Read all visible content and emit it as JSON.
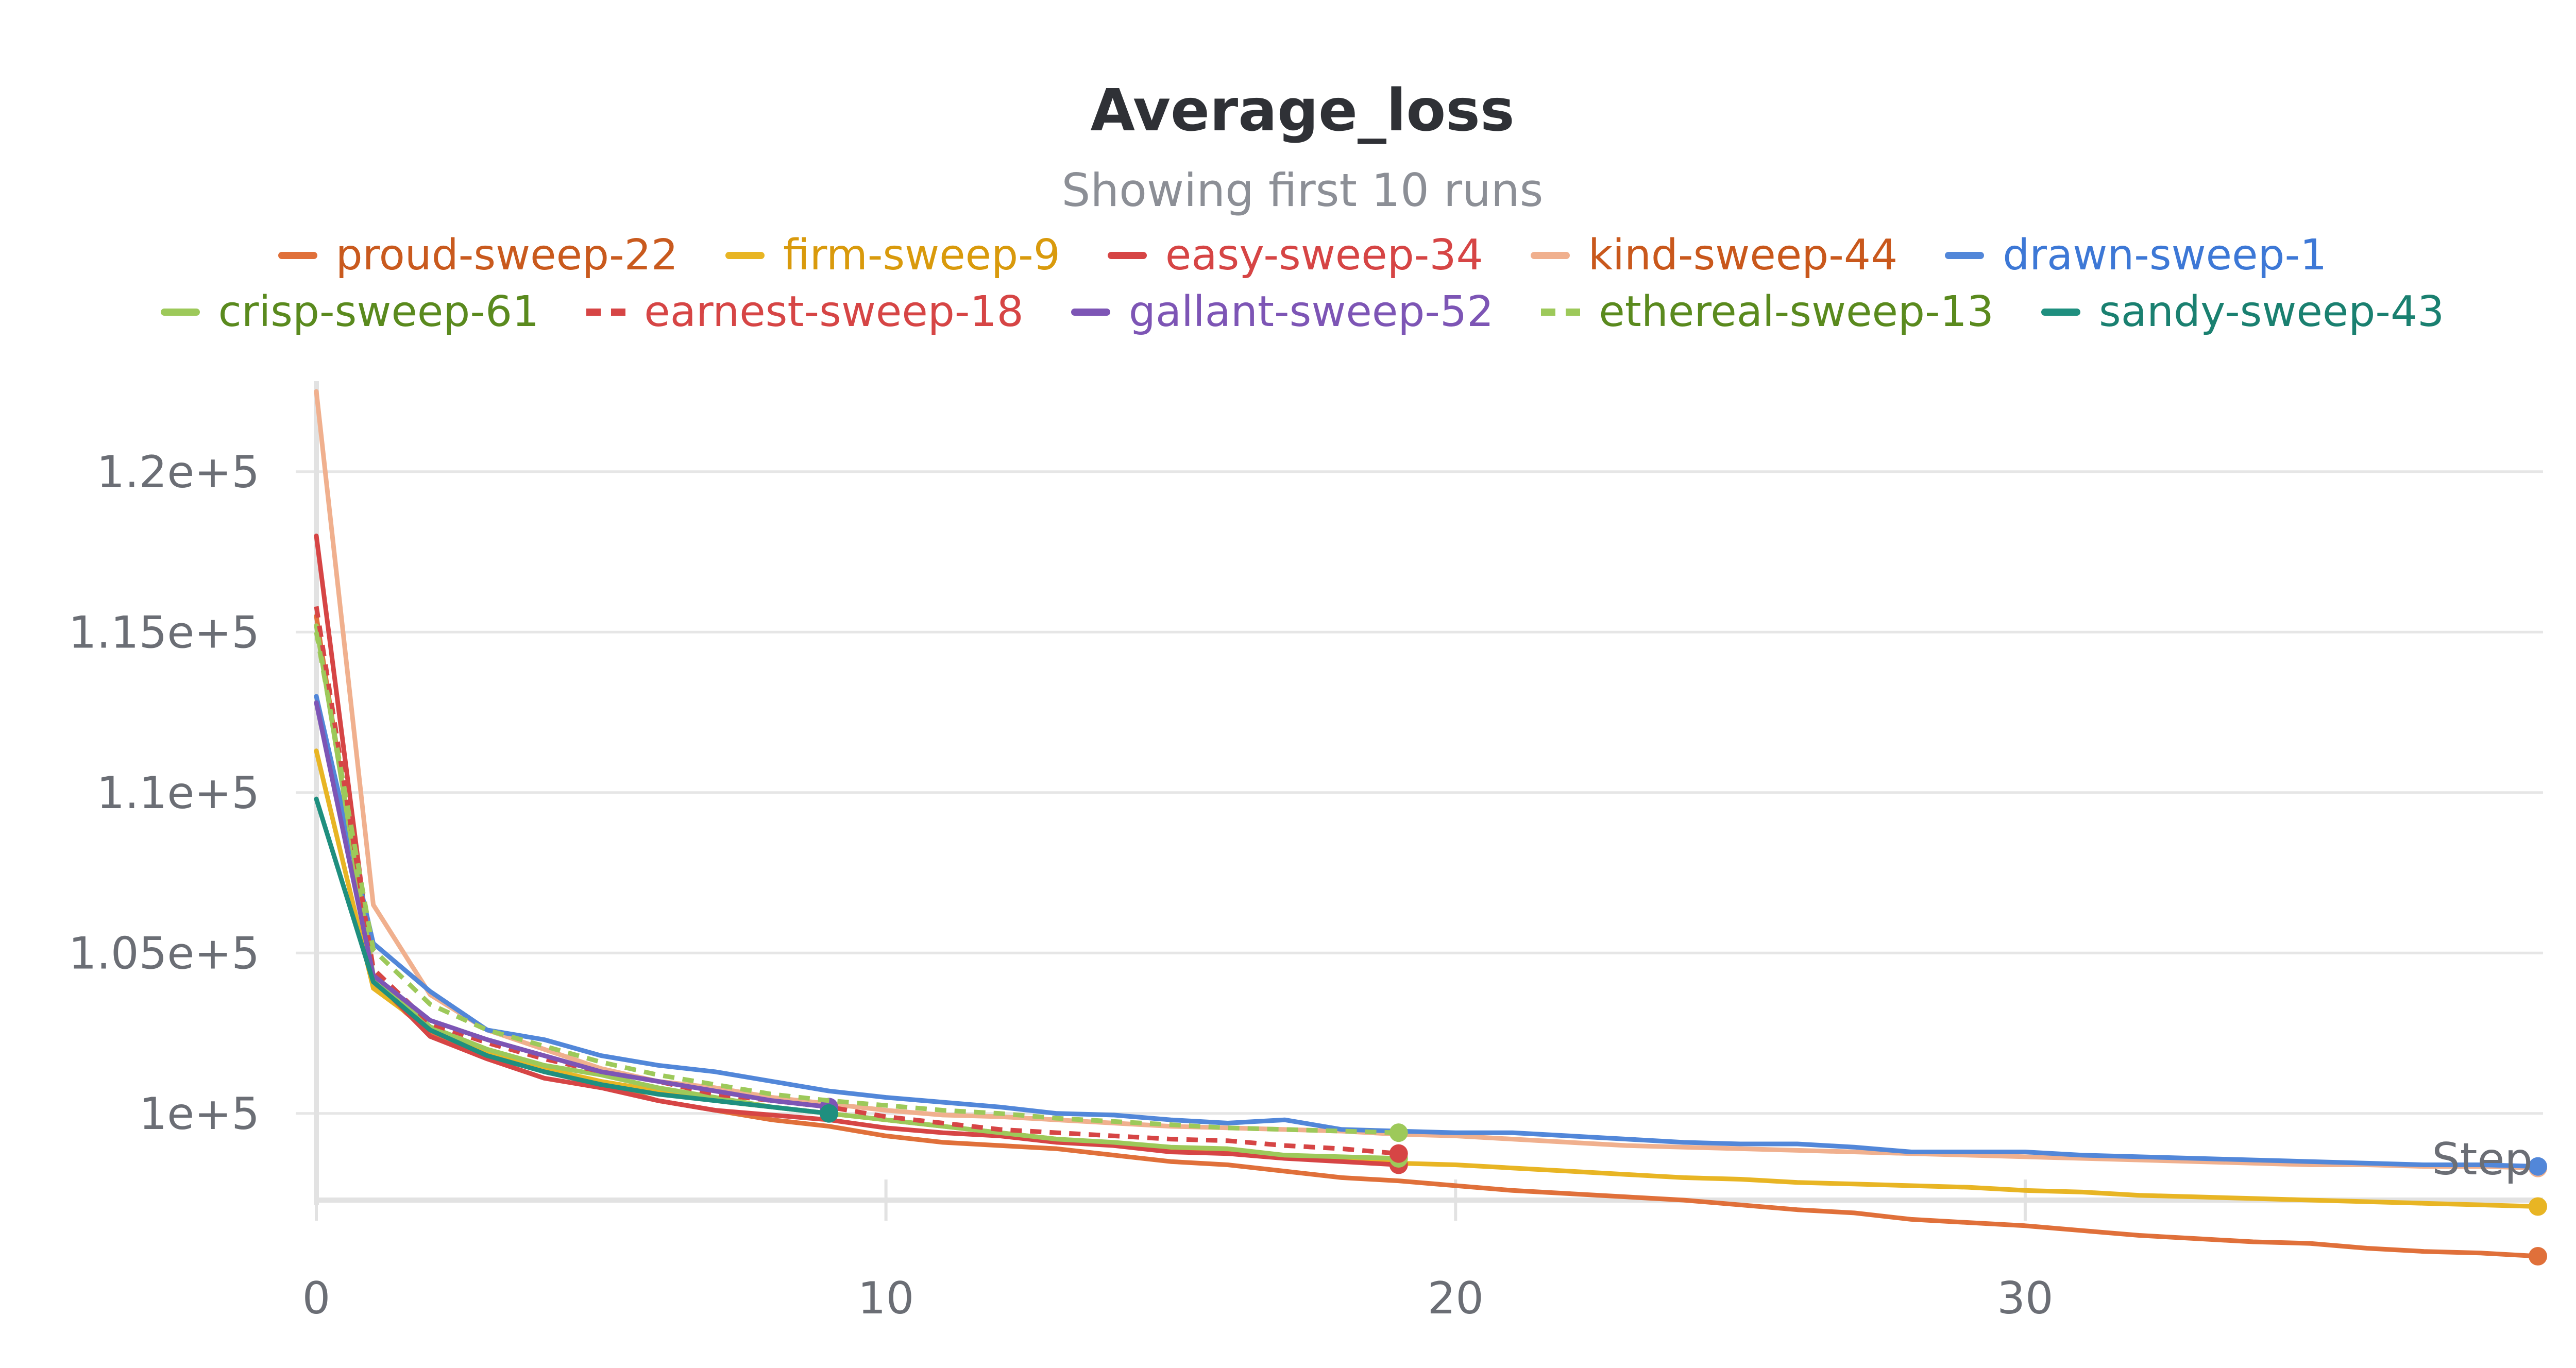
{
  "chart_data": {
    "type": "line",
    "title": "Average_loss",
    "subtitle": "Showing first 10 runs",
    "xlabel": "Step",
    "ylabel": "",
    "xlim": [
      0,
      39
    ],
    "ylim": [
      97300,
      122500
    ],
    "x_ticks": [
      0,
      10,
      20,
      30
    ],
    "x_tick_labels": [
      "0",
      "10",
      "20",
      "30"
    ],
    "y_ticks": [
      100000,
      105000,
      110000,
      115000,
      120000
    ],
    "y_tick_labels": [
      "1e+5",
      "1.05e+5",
      "1.1e+5",
      "1.15e+5",
      "1.2e+5"
    ],
    "grid": true,
    "legend_position": "top",
    "series": [
      {
        "name": "proud-sweep-22",
        "color": "#e0703a",
        "text_color": "#c95a1e",
        "dashed": false,
        "x": [
          0,
          1,
          2,
          3,
          4,
          5,
          6,
          7,
          8,
          9,
          10,
          11,
          12,
          13,
          14,
          15,
          16,
          17,
          18,
          19,
          20,
          21,
          22,
          23,
          24,
          25,
          26,
          27,
          28,
          29,
          30,
          31,
          32,
          33,
          34,
          35,
          36,
          37,
          38,
          39
        ],
        "y": [
          115500,
          104000,
          102500,
          101900,
          101300,
          100900,
          100400,
          100100,
          99800,
          99600,
          99300,
          99100,
          99000,
          98900,
          98700,
          98500,
          98400,
          98200,
          98000,
          97900,
          97750,
          97600,
          97500,
          97400,
          97300,
          97150,
          97000,
          96900,
          96700,
          96600,
          96500,
          96350,
          96200,
          96100,
          96000,
          95950,
          95800,
          95700,
          95650,
          95550
        ]
      },
      {
        "name": "firm-sweep-9",
        "color": "#e8b524",
        "text_color": "#d99a0c",
        "dashed": false,
        "x": [
          0,
          1,
          2,
          3,
          4,
          5,
          6,
          7,
          8,
          9,
          10,
          11,
          12,
          13,
          14,
          15,
          16,
          17,
          18,
          19,
          20,
          21,
          22,
          23,
          24,
          25,
          26,
          27,
          28,
          29,
          30,
          31,
          32,
          33,
          34,
          35,
          36,
          37,
          38,
          39
        ],
        "y": [
          111300,
          103900,
          102600,
          101900,
          101400,
          101000,
          100700,
          100400,
          100200,
          100000,
          99800,
          99600,
          99400,
          99200,
          99000,
          98900,
          98800,
          98700,
          98600,
          98450,
          98400,
          98300,
          98200,
          98100,
          98000,
          97950,
          97850,
          97800,
          97750,
          97700,
          97600,
          97550,
          97450,
          97400,
          97350,
          97300,
          97250,
          97200,
          97150,
          97100
        ]
      },
      {
        "name": "easy-sweep-34",
        "color": "#d64545",
        "text_color": "#d64545",
        "dashed": false,
        "x": [
          0,
          1,
          2,
          3,
          4,
          5,
          6,
          7,
          8,
          9,
          10,
          11,
          12,
          13,
          14,
          15,
          16,
          17,
          18,
          19
        ],
        "y": [
          118000,
          104200,
          102400,
          101700,
          101100,
          100800,
          100400,
          100100,
          99950,
          99800,
          99550,
          99400,
          99300,
          99100,
          99000,
          98800,
          98750,
          98600,
          98500,
          98400
        ]
      },
      {
        "name": "kind-sweep-44",
        "color": "#f0b08e",
        "text_color": "#c9581c",
        "dashed": false,
        "x": [
          0,
          1,
          2,
          3,
          4,
          5,
          6,
          7,
          8,
          9,
          10,
          11,
          12,
          13,
          14,
          15,
          16,
          17,
          18,
          19,
          20,
          21,
          22,
          23,
          24,
          25,
          26,
          27,
          28,
          29,
          30,
          31,
          32,
          33,
          34,
          35,
          36,
          37,
          38,
          39
        ],
        "y": [
          122500,
          106500,
          103700,
          102600,
          102000,
          101400,
          101000,
          100800,
          100500,
          100300,
          100100,
          99950,
          99900,
          99800,
          99700,
          99600,
          99550,
          99500,
          99450,
          99350,
          99300,
          99200,
          99100,
          99000,
          98950,
          98900,
          98850,
          98800,
          98750,
          98700,
          98650,
          98600,
          98550,
          98500,
          98450,
          98400,
          98400,
          98350,
          98350,
          98300
        ]
      },
      {
        "name": "drawn-sweep-1",
        "color": "#5287d9",
        "text_color": "#3d78d6",
        "dashed": false,
        "x": [
          0,
          1,
          2,
          3,
          4,
          5,
          6,
          7,
          8,
          9,
          10,
          11,
          12,
          13,
          14,
          15,
          16,
          17,
          18,
          19,
          20,
          21,
          22,
          23,
          24,
          25,
          26,
          27,
          28,
          29,
          30,
          31,
          32,
          33,
          34,
          35,
          36,
          37,
          38,
          39
        ],
        "y": [
          113000,
          105300,
          103800,
          102600,
          102300,
          101800,
          101500,
          101300,
          101000,
          100700,
          100500,
          100350,
          100200,
          100000,
          99950,
          99800,
          99700,
          99800,
          99500,
          99450,
          99400,
          99400,
          99300,
          99200,
          99100,
          99050,
          99050,
          98950,
          98800,
          98800,
          98800,
          98700,
          98650,
          98600,
          98550,
          98500,
          98450,
          98400,
          98400,
          98350
        ]
      },
      {
        "name": "crisp-sweep-61",
        "color": "#9dc95a",
        "text_color": "#5a8a1e",
        "dashed": false,
        "x": [
          0,
          1,
          2,
          3,
          4,
          5,
          6,
          7,
          8,
          9,
          10,
          11,
          12,
          13,
          14,
          15,
          16,
          17,
          18,
          19
        ],
        "y": [
          115200,
          104300,
          102700,
          102000,
          101500,
          101200,
          100800,
          100500,
          100200,
          100000,
          99800,
          99600,
          99400,
          99200,
          99100,
          98950,
          98900,
          98700,
          98650,
          98600
        ]
      },
      {
        "name": "earnest-sweep-18",
        "color": "#d64545",
        "text_color": "#d64545",
        "dashed": true,
        "x": [
          0,
          1,
          2,
          3,
          4,
          5,
          6,
          7,
          8,
          9,
          10,
          11,
          12,
          13,
          14,
          15,
          16,
          17,
          18,
          19
        ],
        "y": [
          115800,
          104500,
          102800,
          102200,
          101700,
          101300,
          101000,
          100600,
          100400,
          100200,
          99900,
          99700,
          99500,
          99400,
          99300,
          99200,
          99150,
          99000,
          98900,
          98750
        ]
      },
      {
        "name": "gallant-sweep-52",
        "color": "#7d55b5",
        "text_color": "#7d55b5",
        "dashed": false,
        "x": [
          0,
          1,
          2,
          3,
          4,
          5,
          6,
          7,
          8,
          9
        ],
        "y": [
          112800,
          104300,
          102900,
          102300,
          101800,
          101300,
          101000,
          100700,
          100400,
          100200
        ]
      },
      {
        "name": "ethereal-sweep-13",
        "color": "#9dc95a",
        "text_color": "#5a8a1e",
        "dashed": true,
        "x": [
          0,
          1,
          2,
          3,
          4,
          5,
          6,
          7,
          8,
          9,
          10,
          11,
          12,
          13,
          14,
          15,
          16,
          17,
          18,
          19
        ],
        "y": [
          115000,
          105100,
          103400,
          102600,
          102100,
          101600,
          101200,
          100900,
          100600,
          100400,
          100250,
          100100,
          100000,
          99850,
          99750,
          99650,
          99550,
          99500,
          99450,
          99400
        ]
      },
      {
        "name": "sandy-sweep-43",
        "color": "#1f8f7f",
        "text_color": "#1a8070",
        "dashed": false,
        "x": [
          0,
          1,
          2,
          3,
          4,
          5,
          6,
          7,
          8,
          9
        ],
        "y": [
          109800,
          104100,
          102600,
          101800,
          101300,
          100900,
          100600,
          100400,
          100200,
          100000
        ]
      }
    ]
  }
}
